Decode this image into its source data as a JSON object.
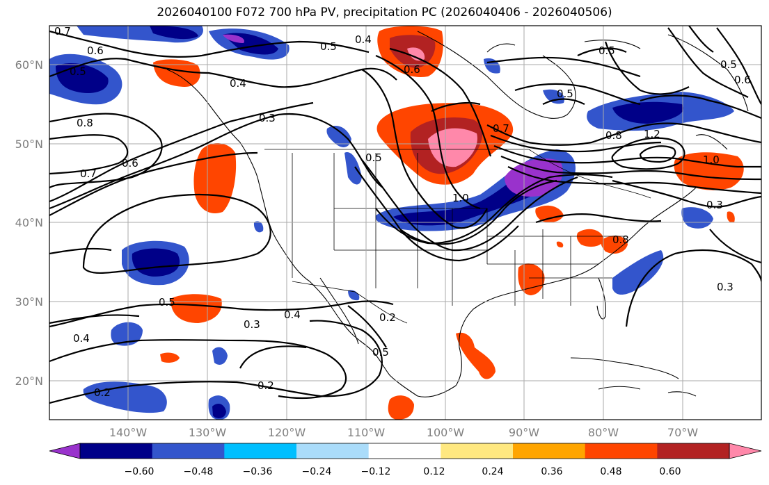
{
  "title": "2026040100 F072 700 hPa PV, precipitation PC (2026040406 - 2026040506)",
  "map": {
    "projection": "equirectangular",
    "lon_range": [
      -150,
      -61
    ],
    "lat_range": [
      15,
      65
    ],
    "gridlines": true,
    "lat_ticks": [
      "20°N",
      "30°N",
      "40°N",
      "50°N",
      "60°N"
    ],
    "lon_ticks": [
      "140°W",
      "130°W",
      "120°W",
      "110°W",
      "100°W",
      "90°W",
      "80°W",
      "70°W"
    ]
  },
  "colorbar": {
    "levels": [
      "−0.60",
      "−0.48",
      "−0.36",
      "−0.24",
      "−0.12",
      "0.12",
      "0.24",
      "0.36",
      "0.48",
      "0.60"
    ],
    "colors": [
      "#9932cc",
      "#000088",
      "#3355cc",
      "#00bfff",
      "#aadcfa",
      "#ffffff",
      "#ffe880",
      "#ffa500",
      "#ff4500",
      "#b22222",
      "#ff88aa"
    ],
    "extend": "both"
  },
  "contour_labels": [
    {
      "text": "0.7"
    },
    {
      "text": "0.6"
    },
    {
      "text": "0.5"
    },
    {
      "text": "0.4"
    },
    {
      "text": "0.5"
    },
    {
      "text": "0.6"
    },
    {
      "text": "0.4"
    },
    {
      "text": "0.3"
    },
    {
      "text": "0.8"
    },
    {
      "text": "0.7"
    },
    {
      "text": "0.6"
    },
    {
      "text": "0.5"
    },
    {
      "text": "0.5"
    },
    {
      "text": "0.3"
    },
    {
      "text": "0.4"
    },
    {
      "text": "0.4"
    },
    {
      "text": "0.2"
    },
    {
      "text": "0.2"
    },
    {
      "text": "0.2"
    },
    {
      "text": "0.5"
    },
    {
      "text": "0.7"
    },
    {
      "text": "1.0"
    },
    {
      "text": "0.5"
    },
    {
      "text": "0.8"
    },
    {
      "text": "1.2"
    },
    {
      "text": "1.0"
    },
    {
      "text": "0.3"
    },
    {
      "text": "0.3"
    },
    {
      "text": "0.5"
    },
    {
      "text": "0.5"
    },
    {
      "text": "0.6"
    },
    {
      "text": "0.8"
    }
  ]
}
